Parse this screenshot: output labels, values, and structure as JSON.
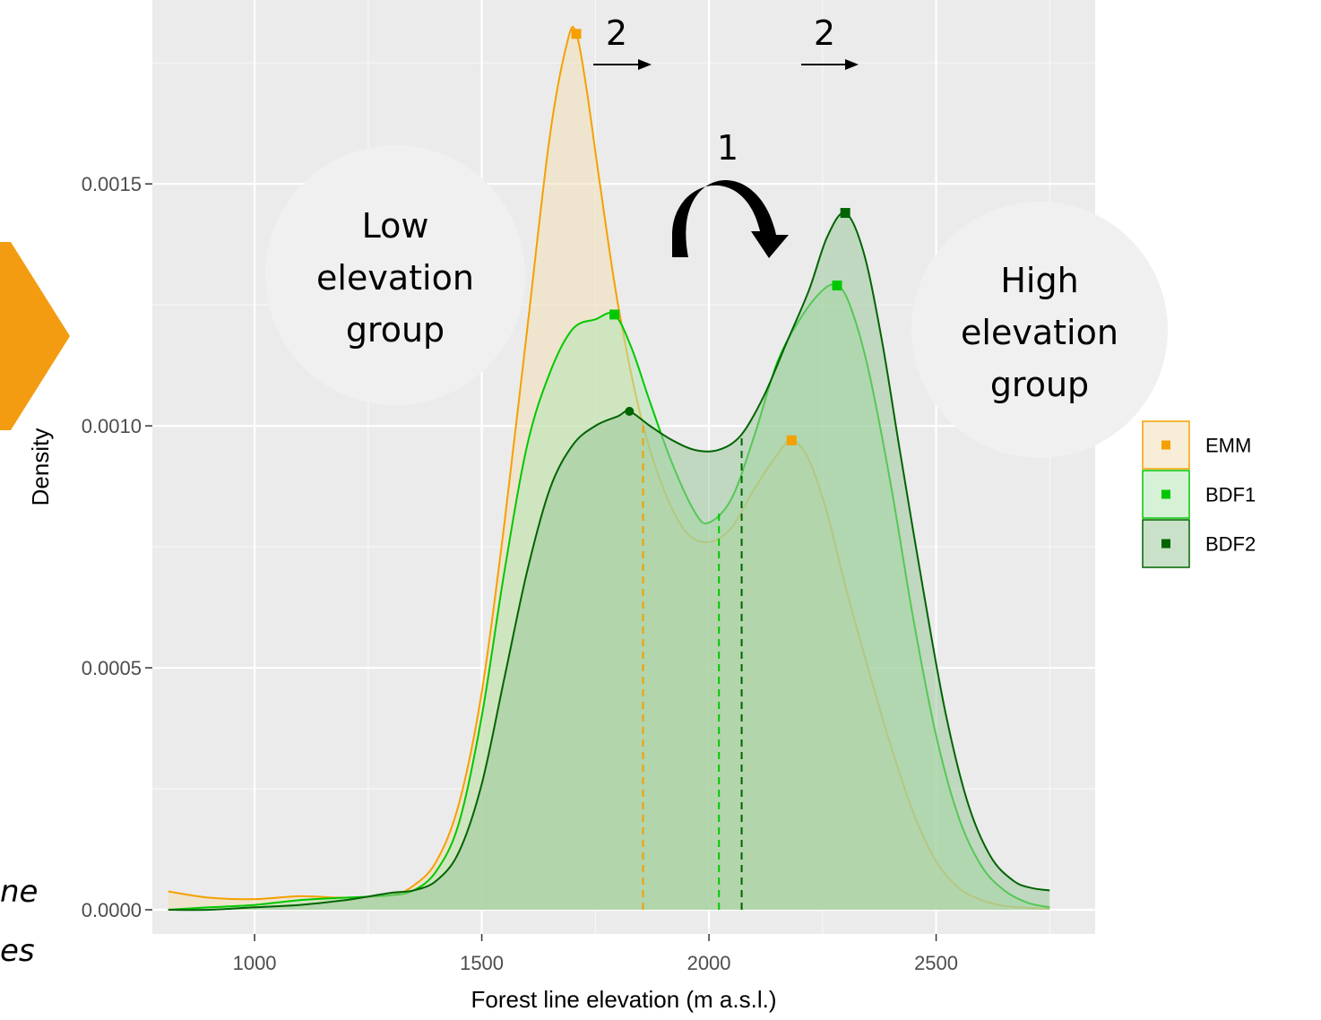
{
  "chart_data": {
    "type": "area",
    "title": "",
    "xlabel": "Forest line elevation (m a.s.l.)",
    "ylabel": "Density",
    "xlim": [
      775,
      2850
    ],
    "ylim": [
      -5e-05,
      0.00188
    ],
    "x_ticks": [
      1000,
      1500,
      2000,
      2500
    ],
    "y_ticks": [
      0.0,
      0.0005,
      0.001,
      0.0015
    ],
    "x_tick_labels": [
      "1000",
      "1500",
      "2000",
      "2500"
    ],
    "y_tick_labels": [
      "0.0000",
      "0.0005",
      "0.0010",
      "0.0015"
    ],
    "grid": true,
    "legend": "right",
    "series": [
      {
        "name": "EMM",
        "color": "#F5A000",
        "fill": "#F2DEB4",
        "mean": 1855,
        "peaks": [
          [
            1708,
            0.00181
          ],
          [
            2182,
            0.00097
          ]
        ],
        "points": [
          [
            810,
            3.8e-05
          ],
          [
            900,
            2.5e-05
          ],
          [
            1000,
            2.2e-05
          ],
          [
            1100,
            2.8e-05
          ],
          [
            1200,
            2.5e-05
          ],
          [
            1300,
            3e-05
          ],
          [
            1350,
            5e-05
          ],
          [
            1400,
            0.0001
          ],
          [
            1450,
            0.00022
          ],
          [
            1500,
            0.00045
          ],
          [
            1550,
            0.0008
          ],
          [
            1600,
            0.0012
          ],
          [
            1650,
            0.0016
          ],
          [
            1690,
            0.0018
          ],
          [
            1708,
            0.00181
          ],
          [
            1730,
            0.0017
          ],
          [
            1760,
            0.0015
          ],
          [
            1800,
            0.00125
          ],
          [
            1850,
            0.00102
          ],
          [
            1900,
            0.00087
          ],
          [
            1950,
            0.00078
          ],
          [
            2000,
            0.00076
          ],
          [
            2050,
            0.00079
          ],
          [
            2100,
            0.00087
          ],
          [
            2150,
            0.00094
          ],
          [
            2182,
            0.00097
          ],
          [
            2220,
            0.00093
          ],
          [
            2260,
            0.00082
          ],
          [
            2300,
            0.00067
          ],
          [
            2350,
            0.0005
          ],
          [
            2400,
            0.00034
          ],
          [
            2450,
            0.0002
          ],
          [
            2500,
            0.0001
          ],
          [
            2550,
            4.5e-05
          ],
          [
            2600,
            2e-05
          ],
          [
            2650,
            8e-06
          ],
          [
            2700,
            4e-06
          ],
          [
            2750,
            2e-06
          ]
        ]
      },
      {
        "name": "BDF1",
        "color": "#00C800",
        "fill": "#B4E6B4",
        "mean": 2022,
        "peaks": [
          [
            1792,
            0.00123
          ],
          [
            2282,
            0.00129
          ]
        ],
        "points": [
          [
            810,
            0.0
          ],
          [
            900,
            5e-06
          ],
          [
            1000,
            1e-05
          ],
          [
            1100,
            2e-05
          ],
          [
            1200,
            2.5e-05
          ],
          [
            1300,
            3e-05
          ],
          [
            1350,
            4e-05
          ],
          [
            1400,
            8e-05
          ],
          [
            1450,
            0.00018
          ],
          [
            1500,
            0.0004
          ],
          [
            1550,
            0.0007
          ],
          [
            1600,
            0.00096
          ],
          [
            1650,
            0.00111
          ],
          [
            1700,
            0.0012
          ],
          [
            1750,
            0.00122
          ],
          [
            1792,
            0.00123
          ],
          [
            1830,
            0.00116
          ],
          [
            1870,
            0.00105
          ],
          [
            1920,
            0.00092
          ],
          [
            1970,
            0.00082
          ],
          [
            2000,
            0.0008
          ],
          [
            2050,
            0.00085
          ],
          [
            2100,
            0.00098
          ],
          [
            2150,
            0.00113
          ],
          [
            2200,
            0.00122
          ],
          [
            2250,
            0.00128
          ],
          [
            2282,
            0.00129
          ],
          [
            2310,
            0.00125
          ],
          [
            2350,
            0.00112
          ],
          [
            2400,
            0.00088
          ],
          [
            2450,
            0.0006
          ],
          [
            2500,
            0.00036
          ],
          [
            2550,
            0.00019
          ],
          [
            2600,
            9e-05
          ],
          [
            2650,
            4e-05
          ],
          [
            2700,
            1.5e-05
          ],
          [
            2750,
            5e-06
          ]
        ]
      },
      {
        "name": "BDF2",
        "color": "#006400",
        "fill": "#9BC89B",
        "mean": 2072,
        "peaks": [
          [
            1825,
            0.00103
          ],
          [
            2300,
            0.00144
          ]
        ],
        "points": [
          [
            810,
            0.0
          ],
          [
            900,
            0.0
          ],
          [
            1000,
            5e-06
          ],
          [
            1100,
            1e-05
          ],
          [
            1200,
            2e-05
          ],
          [
            1300,
            3.5e-05
          ],
          [
            1350,
            4e-05
          ],
          [
            1400,
            6e-05
          ],
          [
            1450,
            0.00012
          ],
          [
            1500,
            0.00026
          ],
          [
            1550,
            0.00048
          ],
          [
            1600,
            0.0007
          ],
          [
            1650,
            0.00087
          ],
          [
            1700,
            0.00096
          ],
          [
            1750,
            0.001
          ],
          [
            1800,
            0.00102
          ],
          [
            1825,
            0.00103
          ],
          [
            1870,
            0.001
          ],
          [
            1920,
            0.00097
          ],
          [
            1970,
            0.00095
          ],
          [
            2020,
            0.00095
          ],
          [
            2070,
            0.00098
          ],
          [
            2120,
            0.00106
          ],
          [
            2170,
            0.00117
          ],
          [
            2220,
            0.00128
          ],
          [
            2260,
            0.00139
          ],
          [
            2300,
            0.00144
          ],
          [
            2340,
            0.00136
          ],
          [
            2380,
            0.00118
          ],
          [
            2420,
            0.00095
          ],
          [
            2470,
            0.00067
          ],
          [
            2520,
            0.00041
          ],
          [
            2570,
            0.00022
          ],
          [
            2620,
            0.00011
          ],
          [
            2670,
            6e-05
          ],
          [
            2710,
            4.5e-05
          ],
          [
            2750,
            4e-05
          ]
        ]
      }
    ]
  },
  "annotations": {
    "low_group": [
      "Low",
      "elevation",
      "group"
    ],
    "high_group": [
      "High",
      "elevation",
      "group"
    ],
    "shift_label": "1",
    "move_label_left": "2",
    "move_label_right": "2"
  },
  "side_text": [
    "ne",
    "es"
  ]
}
